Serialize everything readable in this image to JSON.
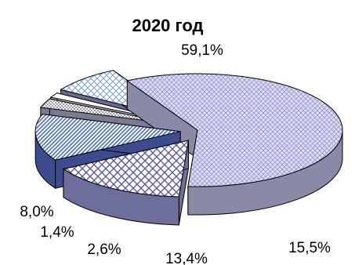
{
  "chart_data": {
    "type": "pie",
    "title": "2020 год",
    "slices": [
      {
        "value": 59.1,
        "label": "59,1%",
        "color": "#c8c8e8"
      },
      {
        "value": 15.5,
        "label": "15,5%",
        "color": "#9c9cd8"
      },
      {
        "value": 13.4,
        "label": "13,4%",
        "color": "#6a7ec8"
      },
      {
        "value": 2.6,
        "label": "2,6%",
        "color": "#8a8aa0"
      },
      {
        "value": 1.4,
        "label": "1,4%",
        "color": "#ffffff"
      },
      {
        "value": 8.0,
        "label": "8,0%",
        "color": "#d8e4f0"
      }
    ],
    "legend": "none",
    "style": "3d-exploded"
  }
}
